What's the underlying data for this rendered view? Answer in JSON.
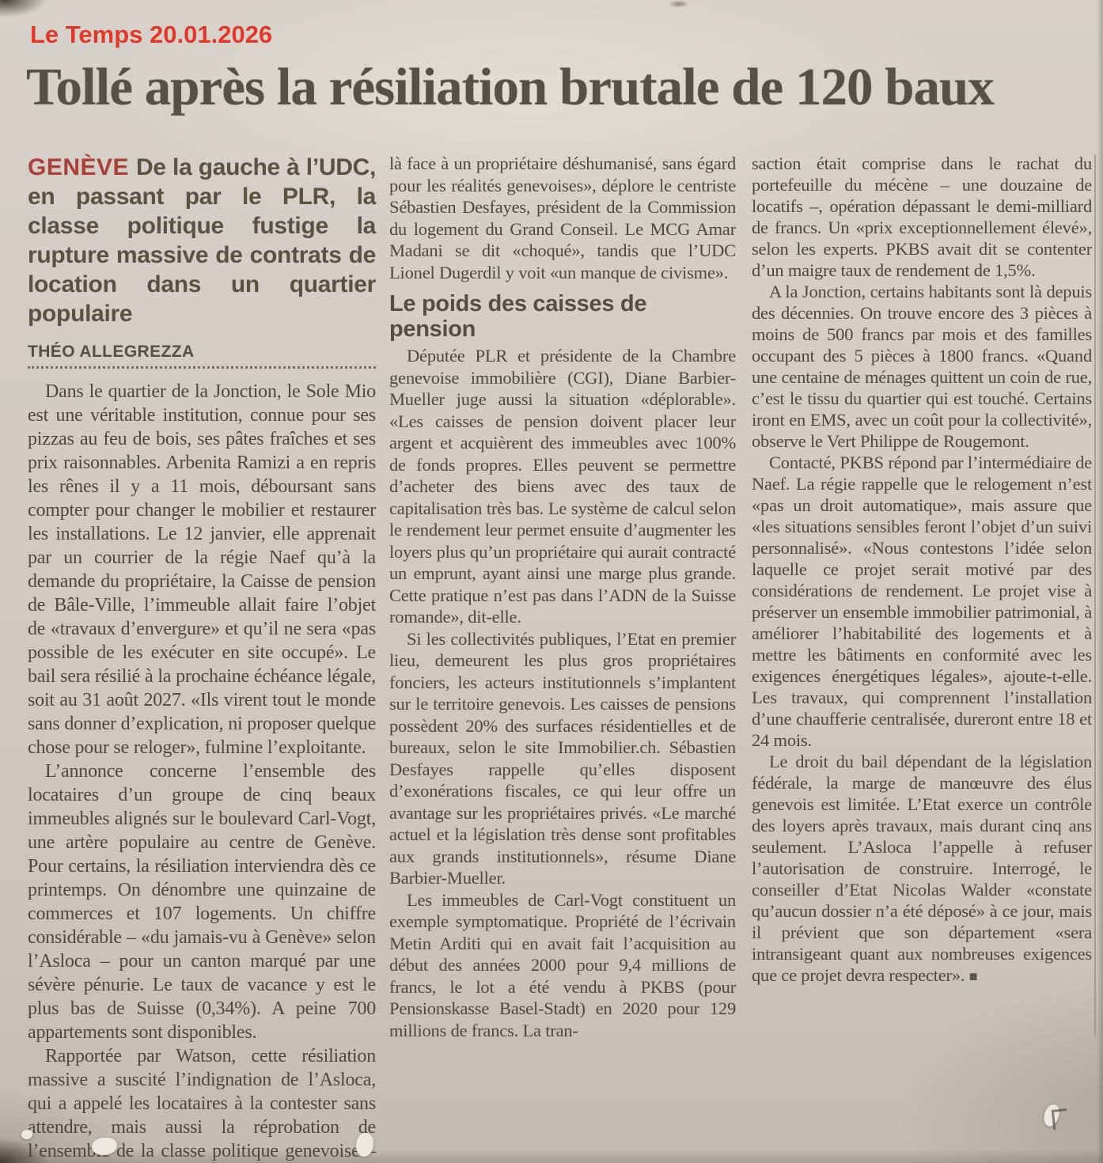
{
  "annotation": "Le Temps 20.01.2026",
  "headline": "Tollé après la résiliation brutale de 120 baux",
  "lead": {
    "kicker": "GENÈVE",
    "text": "De la gauche à l’UDC, en passant par le PLR, la classe politique fustige la rupture massive de contrats de location dans un quartier populaire"
  },
  "byline": "THÉO ALLEGREZZA",
  "subhead": "Le poids des caisses de pension",
  "end_mark": "■",
  "colors": {
    "annotation_red": "#e0392a",
    "kicker_red": "#a84038",
    "headline_gray": "#55504a",
    "body_text": "#4d473f",
    "paper": "#d0c9c2"
  },
  "columns": {
    "col1": {
      "p1": "Dans le quartier de la Jonction, le Sole Mio est une véritable institution, connue pour ses pizzas au feu de bois, ses pâtes fraîches et ses prix raisonnables. Arbenita Ramizi a en repris les rênes il y a 11 mois, déboursant sans compter pour changer le mobilier et restaurer les installations. Le 12 janvier, elle apprenait par un courrier de la régie Naef qu’à la demande du propriétaire, la Caisse de pension de Bâle-Ville, l’immeuble allait faire l’objet de «travaux d’envergure» et qu’il ne sera «pas possible de les exécuter en site occupé». Le bail sera résilié à la prochaine échéance légale, soit au 31 août 2027. «Ils virent tout le monde sans donner d’explication, ni proposer quelque chose pour se reloger», fulmine l’exploitante.",
      "p2": "L’annonce concerne l’ensemble des locataires d’un groupe de cinq beaux immeubles alignés sur le boulevard Carl-Vogt, une artère populaire au centre de Genève. Pour certains, la résiliation interviendra dès ce printemps. On dénombre une quinzaine de commerces et 107 logements. Un chiffre considérable – «du jamais-vu à Genève» selon l’Asloca – pour un canton marqué par une sévère pénurie. Le taux de vacance y est le plus bas de Suisse (0,34%). A peine 700 appartements sont disponibles.",
      "p3": "Rapportée par Watson, cette résiliation massive a suscité l’indignation de l’Asloca, qui a appelé les locataires à la contester sans attendre, mais aussi la réprobation de l’ensemble de la classe politique genevoise – ce qui est plus inhabituel. «On est"
    },
    "col2": {
      "p1": "là face à un propriétaire déshumanisé, sans égard pour les réalités genevoises», déplore le centriste Sébastien Desfayes, président de la Commission du logement du Grand Conseil. Le MCG Amar Madani se dit «choqué», tandis que l’UDC Lionel Dugerdil y voit «un manque de civisme».",
      "p2": "Députée PLR et présidente de la Chambre genevoise immobilière (CGI), Diane Barbier-Mueller juge aussi la situation «déplorable». «Les caisses de pension doivent placer leur argent et acquièrent des immeubles avec 100% de fonds propres. Elles peuvent se permettre d’acheter des biens avec des taux de capitalisation très bas. Le système de calcul selon le rendement leur permet ensuite d’augmenter les loyers plus qu’un propriétaire qui aurait contracté un emprunt, ayant ainsi une marge plus grande. Cette pratique n’est pas dans l’ADN de la Suisse romande», dit-elle.",
      "p3": "Si les collectivités publiques, l’Etat en premier lieu, demeurent les plus gros propriétaires fonciers, les acteurs institutionnels s’implantent sur le territoire genevois. Les caisses de pensions possèdent 20% des surfaces résidentielles et de bureaux, selon le site Immobilier.ch. Sébastien Desfayes rappelle qu’elles disposent d’exonérations fiscales, ce qui leur offre un avantage sur les propriétaires privés. «Le marché actuel et la législation très dense sont profitables aux grands institutionnels», résume Diane Barbier-Mueller.",
      "p4": "Les immeubles de Carl-Vogt constituent un exemple symptomatique. Propriété de l’écrivain Metin Arditi qui en avait fait l’acquisition au début des années 2000 pour 9,4 millions de francs, le lot a été vendu à PKBS (pour Pensionskasse Basel-Stadt) en 2020 pour 129 millions de francs. La tran-"
    },
    "col3": {
      "p1": "saction était comprise dans le rachat du portefeuille du mécène – une douzaine de locatifs –, opération dépassant le demi-milliard de francs. Un «prix exceptionnellement élevé», selon les experts. PKBS avait dit se contenter d’un maigre taux de rendement de 1,5%.",
      "p2": "A la Jonction, certains habitants sont là depuis des décennies. On trouve encore des 3 pièces à moins de 500 francs par mois et des familles occupant des 5 pièces à 1800 francs. «Quand une centaine de ménages quittent un coin de rue, c’est le tissu du quartier qui est touché. Certains iront en EMS, avec un coût pour la collectivité», observe le Vert Philippe de Rougemont.",
      "p3": "Contacté, PKBS répond par l’intermédiaire de Naef. La régie rappelle que le relogement n’est «pas un droit automatique», mais assure que «les situations sensibles feront l’objet d’un suivi personnalisé». «Nous contestons l’idée selon laquelle ce projet serait motivé par des considérations de rendement. Le projet vise à préserver un ensemble immobilier patrimonial, à améliorer l’habitabilité des logements et à mettre les bâtiments en conformité avec les exigences énergétiques légales», ajoute-t-elle. Les travaux, qui comprennent l’installation d’une chaufferie centralisée, dureront entre 18 et 24 mois.",
      "p4": "Le droit du bail dépendant de la législation fédérale, la marge de manœuvre des élus genevois est limitée. L’Etat exerce un contrôle des loyers après travaux, mais durant cinq ans seulement. L’Asloca l’appelle à refuser l’autorisation de construire. Interrogé, le conseiller d’Etat Nicolas Walder «constate qu’aucun dossier n’a été déposé» à ce jour, mais il prévient que son département «sera intransigeant quant aux nombreuses exigences que ce projet devra respecter». "
    }
  }
}
